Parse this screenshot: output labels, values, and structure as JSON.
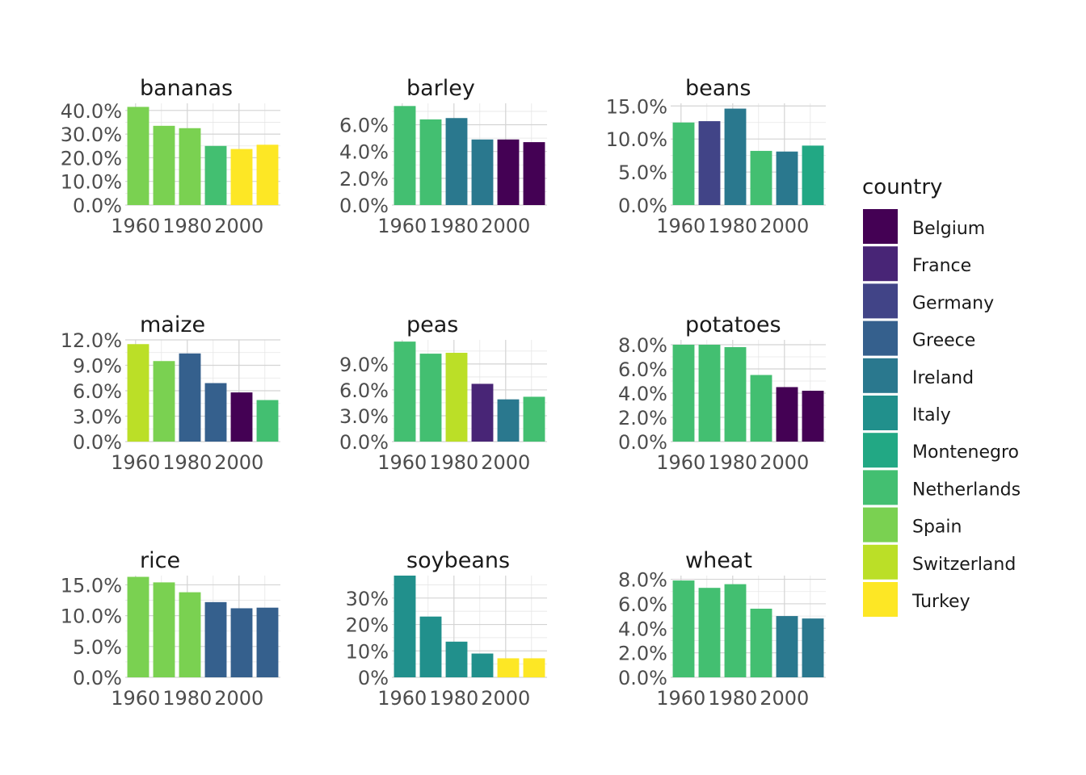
{
  "chart_data": {
    "type": "bar",
    "facet": "crop",
    "x_breaks": [
      "1960",
      "1980",
      "2000"
    ],
    "x_tick_labels": [
      "1960",
      "1980",
      "2000"
    ],
    "legend": {
      "title": "country",
      "placement": "right",
      "entries": [
        {
          "name": "Belgium",
          "color": "#440154"
        },
        {
          "name": "France",
          "color": "#482576"
        },
        {
          "name": "Germany",
          "color": "#414487"
        },
        {
          "name": "Greece",
          "color": "#35608D"
        },
        {
          "name": "Ireland",
          "color": "#2A788E"
        },
        {
          "name": "Italy",
          "color": "#21908C"
        },
        {
          "name": "Montenegro",
          "color": "#22A884"
        },
        {
          "name": "Netherlands",
          "color": "#43BF71"
        },
        {
          "name": "Spain",
          "color": "#7AD151"
        },
        {
          "name": "Switzerland",
          "color": "#BBDF27"
        },
        {
          "name": "Turkey",
          "color": "#FDE725"
        }
      ]
    },
    "panels": [
      {
        "title": "bananas",
        "ylim": [
          0,
          43
        ],
        "y_ticks": [
          0,
          10,
          20,
          30,
          40
        ],
        "y_tick_labels": [
          "0.0%",
          "10.0%",
          "20.0%",
          "30.0%",
          "40.0%"
        ],
        "bars": [
          {
            "year": 1961,
            "value": 41.5,
            "country": "Spain"
          },
          {
            "year": 1971,
            "value": 33.5,
            "country": "Spain"
          },
          {
            "year": 1981,
            "value": 32.5,
            "country": "Spain"
          },
          {
            "year": 1991,
            "value": 25.0,
            "country": "Netherlands"
          },
          {
            "year": 2001,
            "value": 23.7,
            "country": "Turkey"
          },
          {
            "year": 2011,
            "value": 25.5,
            "country": "Turkey"
          }
        ]
      },
      {
        "title": "barley",
        "ylim": [
          0,
          7.6
        ],
        "y_ticks": [
          0,
          2,
          4,
          6
        ],
        "y_tick_labels": [
          "0.0%",
          "2.0%",
          "4.0%",
          "6.0%"
        ],
        "bars": [
          {
            "year": 1961,
            "value": 7.4,
            "country": "Netherlands"
          },
          {
            "year": 1971,
            "value": 6.4,
            "country": "Netherlands"
          },
          {
            "year": 1981,
            "value": 6.5,
            "country": "Ireland"
          },
          {
            "year": 1991,
            "value": 4.9,
            "country": "Ireland"
          },
          {
            "year": 2001,
            "value": 4.9,
            "country": "Belgium"
          },
          {
            "year": 2011,
            "value": 4.7,
            "country": "Belgium"
          }
        ]
      },
      {
        "title": "beans",
        "ylim": [
          0,
          15.4
        ],
        "y_ticks": [
          0,
          5,
          10,
          15
        ],
        "y_tick_labels": [
          "0.0%",
          "5.0%",
          "10.0%",
          "15.0%"
        ],
        "bars": [
          {
            "year": 1961,
            "value": 12.5,
            "country": "Netherlands"
          },
          {
            "year": 1971,
            "value": 12.7,
            "country": "Germany"
          },
          {
            "year": 1981,
            "value": 14.6,
            "country": "Ireland"
          },
          {
            "year": 1991,
            "value": 8.2,
            "country": "Netherlands"
          },
          {
            "year": 2001,
            "value": 8.1,
            "country": "Ireland"
          },
          {
            "year": 2011,
            "value": 9.0,
            "country": "Montenegro"
          }
        ]
      },
      {
        "title": "maize",
        "ylim": [
          0,
          12.0
        ],
        "y_ticks": [
          0,
          3,
          6,
          9,
          12
        ],
        "y_tick_labels": [
          "0.0%",
          "3.0%",
          "6.0%",
          "9.0%",
          "12.0%"
        ],
        "bars": [
          {
            "year": 1961,
            "value": 11.5,
            "country": "Switzerland"
          },
          {
            "year": 1971,
            "value": 9.5,
            "country": "Spain"
          },
          {
            "year": 1981,
            "value": 10.4,
            "country": "Greece"
          },
          {
            "year": 1991,
            "value": 6.9,
            "country": "Greece"
          },
          {
            "year": 2001,
            "value": 5.8,
            "country": "Belgium"
          },
          {
            "year": 2011,
            "value": 4.9,
            "country": "Netherlands"
          }
        ]
      },
      {
        "title": "peas",
        "ylim": [
          0,
          11.8
        ],
        "y_ticks": [
          0,
          3,
          6,
          9
        ],
        "y_tick_labels": [
          "0.0%",
          "3.0%",
          "6.0%",
          "9.0%"
        ],
        "bars": [
          {
            "year": 1961,
            "value": 11.6,
            "country": "Netherlands"
          },
          {
            "year": 1971,
            "value": 10.2,
            "country": "Netherlands"
          },
          {
            "year": 1981,
            "value": 10.3,
            "country": "Switzerland"
          },
          {
            "year": 1991,
            "value": 6.7,
            "country": "France"
          },
          {
            "year": 2001,
            "value": 4.9,
            "country": "Ireland"
          },
          {
            "year": 2011,
            "value": 5.2,
            "country": "Netherlands"
          }
        ]
      },
      {
        "title": "potatoes",
        "ylim": [
          0,
          8.4
        ],
        "y_ticks": [
          0,
          2,
          4,
          6,
          8
        ],
        "y_tick_labels": [
          "0.0%",
          "2.0%",
          "4.0%",
          "6.0%",
          "8.0%"
        ],
        "bars": [
          {
            "year": 1961,
            "value": 8.0,
            "country": "Netherlands"
          },
          {
            "year": 1971,
            "value": 8.0,
            "country": "Netherlands"
          },
          {
            "year": 1981,
            "value": 7.8,
            "country": "Netherlands"
          },
          {
            "year": 1991,
            "value": 5.5,
            "country": "Netherlands"
          },
          {
            "year": 2001,
            "value": 4.5,
            "country": "Belgium"
          },
          {
            "year": 2011,
            "value": 4.2,
            "country": "Belgium"
          }
        ]
      },
      {
        "title": "rice",
        "ylim": [
          0,
          16.5
        ],
        "y_ticks": [
          0,
          5,
          10,
          15
        ],
        "y_tick_labels": [
          "0.0%",
          "5.0%",
          "10.0%",
          "15.0%"
        ],
        "bars": [
          {
            "year": 1961,
            "value": 16.3,
            "country": "Spain"
          },
          {
            "year": 1971,
            "value": 15.4,
            "country": "Spain"
          },
          {
            "year": 1981,
            "value": 13.8,
            "country": "Spain"
          },
          {
            "year": 1991,
            "value": 12.2,
            "country": "Greece"
          },
          {
            "year": 2001,
            "value": 11.2,
            "country": "Greece"
          },
          {
            "year": 2011,
            "value": 11.3,
            "country": "Greece"
          }
        ]
      },
      {
        "title": "soybeans",
        "ylim": [
          0,
          38.5
        ],
        "y_ticks": [
          0,
          10,
          20,
          30
        ],
        "y_tick_labels": [
          "0%",
          "10%",
          "20%",
          "30%"
        ],
        "bars": [
          {
            "year": 1961,
            "value": 38.5,
            "country": "Italy"
          },
          {
            "year": 1971,
            "value": 23.0,
            "country": "Italy"
          },
          {
            "year": 1981,
            "value": 13.5,
            "country": "Italy"
          },
          {
            "year": 1991,
            "value": 9.0,
            "country": "Italy"
          },
          {
            "year": 2001,
            "value": 7.2,
            "country": "Turkey"
          },
          {
            "year": 2011,
            "value": 7.2,
            "country": "Turkey"
          }
        ]
      },
      {
        "title": "wheat",
        "ylim": [
          0,
          8.3
        ],
        "y_ticks": [
          0,
          2,
          4,
          6,
          8
        ],
        "y_tick_labels": [
          "0.0%",
          "2.0%",
          "4.0%",
          "6.0%",
          "8.0%"
        ],
        "bars": [
          {
            "year": 1961,
            "value": 7.9,
            "country": "Netherlands"
          },
          {
            "year": 1971,
            "value": 7.3,
            "country": "Netherlands"
          },
          {
            "year": 1981,
            "value": 7.6,
            "country": "Netherlands"
          },
          {
            "year": 1991,
            "value": 5.6,
            "country": "Netherlands"
          },
          {
            "year": 2001,
            "value": 5.0,
            "country": "Ireland"
          },
          {
            "year": 2011,
            "value": 4.8,
            "country": "Ireland"
          }
        ]
      }
    ]
  }
}
